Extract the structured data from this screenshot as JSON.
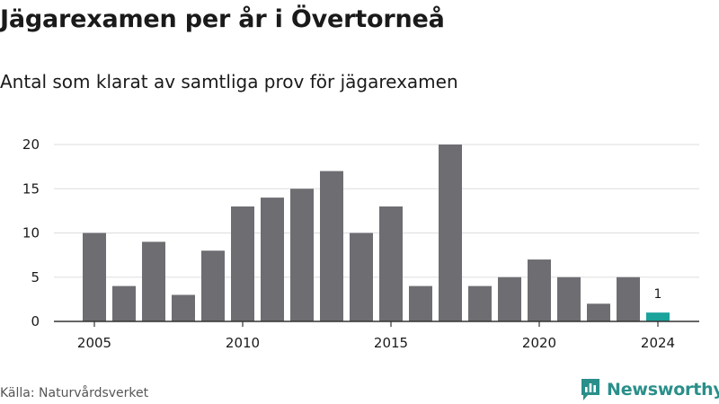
{
  "chart_data": {
    "type": "bar",
    "title": "Jägarexamen per år i Övertorneå",
    "subtitle": "Antal som klarat av samtliga prov för jägarexamen",
    "x": [
      2005,
      2006,
      2007,
      2008,
      2009,
      2010,
      2011,
      2012,
      2013,
      2014,
      2015,
      2016,
      2017,
      2018,
      2019,
      2020,
      2021,
      2022,
      2023,
      2024
    ],
    "values": [
      10,
      4,
      9,
      3,
      8,
      13,
      14,
      15,
      17,
      10,
      13,
      4,
      20,
      4,
      5,
      7,
      5,
      2,
      5,
      1
    ],
    "ylim": [
      0,
      20
    ],
    "yticks": [
      0,
      5,
      10,
      15,
      20
    ],
    "xticks": [
      2005,
      2010,
      2015,
      2020,
      2024
    ],
    "highlight_x": 2024,
    "highlight_label": "1",
    "grid": true,
    "colors": {
      "bar": "#6e6d72",
      "highlight": "#1aa39a",
      "grid": "#dddddd",
      "axis": "#333333"
    }
  },
  "footer": {
    "source": "Källa: Naturvårdsverket",
    "brand": "Newsworthy"
  },
  "icons": {
    "brand_logo": "newsworthy-logo-icon"
  }
}
